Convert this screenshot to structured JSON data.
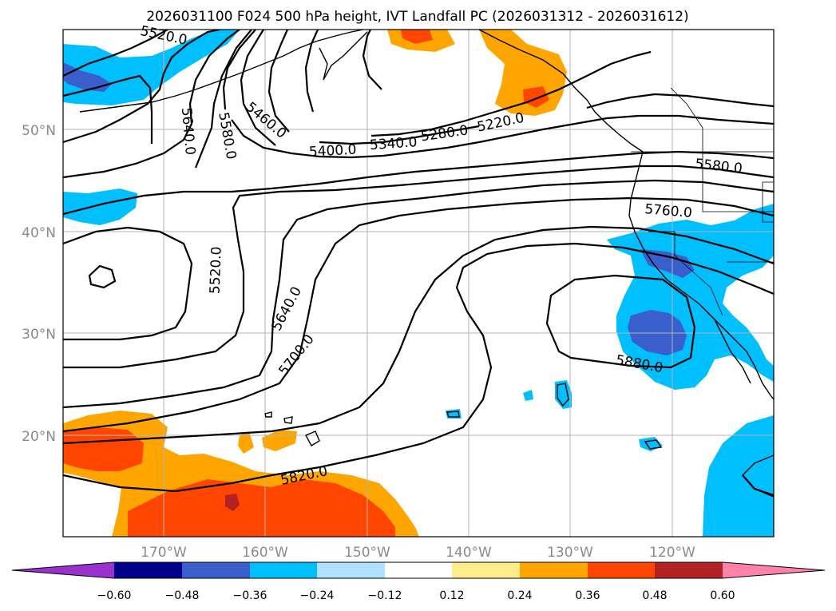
{
  "title": "2026031100 F024 500 hPa height, IVT Landfall PC (2026031312 - 2026031612)",
  "longitude_labels": [
    "170°W",
    "160°W",
    "150°W",
    "140°W",
    "130°W",
    "120°W"
  ],
  "latitude_labels": [
    "50°N",
    "40°N",
    "30°N",
    "20°N"
  ],
  "colorbar": {
    "ticks": [
      "−0.60",
      "−0.48",
      "−0.36",
      "−0.24",
      "−0.12",
      "0.12",
      "0.24",
      "0.36",
      "0.48",
      "0.60"
    ],
    "colors": [
      "#9932cc",
      "#00008b",
      "#3a5fcd",
      "#00bfff",
      "#b0e2ff",
      "#ffffff",
      "#ffec8b",
      "#ffa500",
      "#ff4500",
      "#b22222",
      "#ff82ab"
    ]
  },
  "contour_labels": [
    "5520.0",
    "5640.0",
    "5580.0",
    "5460.0",
    "5400.0",
    "5340.0",
    "5280.0",
    "5220.0",
    "5580.0",
    "5760.0",
    "5520.0",
    "5640.0",
    "5700.0",
    "5880.0",
    "5820.0"
  ],
  "colors": {
    "grid": "#b3b3b3",
    "contour": "#000000"
  }
}
